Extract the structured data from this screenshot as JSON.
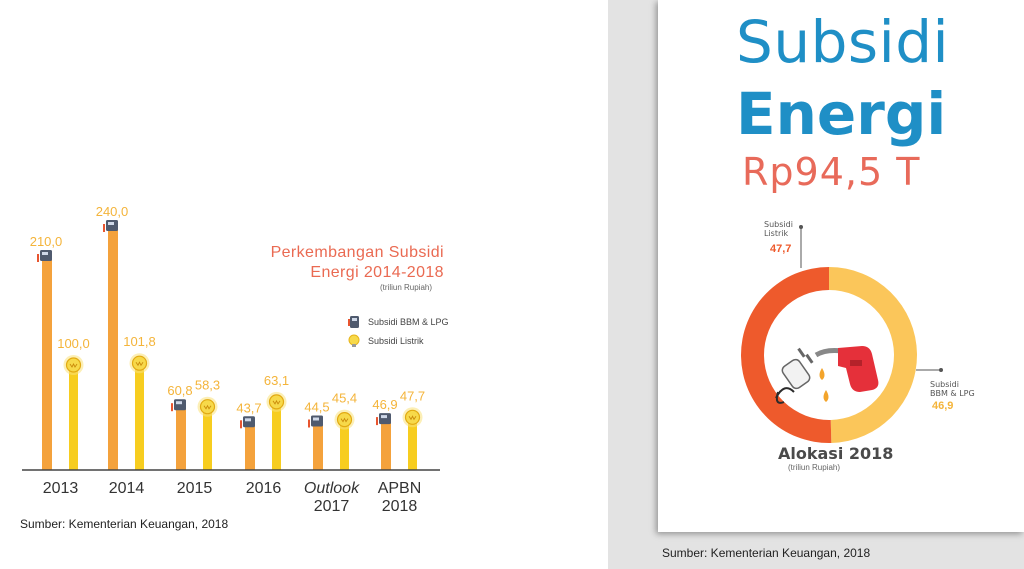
{
  "left": {
    "legend": {
      "title_line1": "Perkembangan Subsidi",
      "title_line2": "Energi 2014-2018",
      "unit": "(triliun Rupiah)",
      "items": [
        "Subsidi BBM & LPG",
        "Subsidi Listrik"
      ]
    },
    "source": "Sumber: Kementerian Keuangan, 2018"
  },
  "right": {
    "title_line1": "Subsidi",
    "title_line2": "Energi",
    "total": "Rp94,5 T",
    "listrik_label_1": "Subsidi",
    "listrik_label_2": "Listrik",
    "listrik_value": "47,7",
    "bbm_label_1": "Subsidi",
    "bbm_label_2": "BBM & LPG",
    "bbm_value": "46,9",
    "alokasi": "Alokasi 2018",
    "alokasi_unit": "(triliun Rupiah)",
    "source": "Sumber: Kementerian Keuangan, 2018"
  },
  "colors": {
    "bbm_bar": "#f4a23c",
    "listrik_bar": "#f7cd1f",
    "value_text": "#f4b43a",
    "title_blue": "#1f8fc6",
    "total_red": "#e86a5a",
    "donut_red": "#ee5a2c",
    "donut_yellow": "#fbc65a"
  },
  "chart_data": [
    {
      "type": "bar",
      "title": "Perkembangan Subsidi Energi 2014-2018",
      "subtitle": "(triliun Rupiah)",
      "categories": [
        {
          "line1": "2013",
          "line2": "",
          "italic": false
        },
        {
          "line1": "2014",
          "line2": "",
          "italic": false
        },
        {
          "line1": "2015",
          "line2": "",
          "italic": false
        },
        {
          "line1": "2016",
          "line2": "",
          "italic": false
        },
        {
          "line1": "Outlook",
          "line2": "2017",
          "italic": true
        },
        {
          "line1": "APBN",
          "line2": "2018",
          "italic": false
        }
      ],
      "series": [
        {
          "name": "Subsidi BBM & LPG",
          "values": [
            210.0,
            240.0,
            60.8,
            43.7,
            44.5,
            46.9
          ],
          "labels": [
            "210,0",
            "240,0",
            "60,8",
            "43,7",
            "44,5",
            "46,9"
          ]
        },
        {
          "name": "Subsidi Listrik",
          "values": [
            100.0,
            101.8,
            58.3,
            63.1,
            45.4,
            47.7
          ],
          "labels": [
            "100,0",
            "101,8",
            "58,3",
            "63,1",
            "45,4",
            "47,7"
          ]
        }
      ],
      "legend_position": "right",
      "grid": false
    },
    {
      "type": "pie",
      "title": "Alokasi 2018",
      "subtitle": "(triliun Rupiah)",
      "labels": [
        "Subsidi Listrik",
        "Subsidi BBM & LPG"
      ],
      "values": [
        47.7,
        46.9
      ],
      "value_labels": [
        "47,7",
        "46,9"
      ],
      "colors": [
        "#ee5a2c",
        "#fbc65a"
      ],
      "total_label": "Rp94,5 T"
    }
  ]
}
